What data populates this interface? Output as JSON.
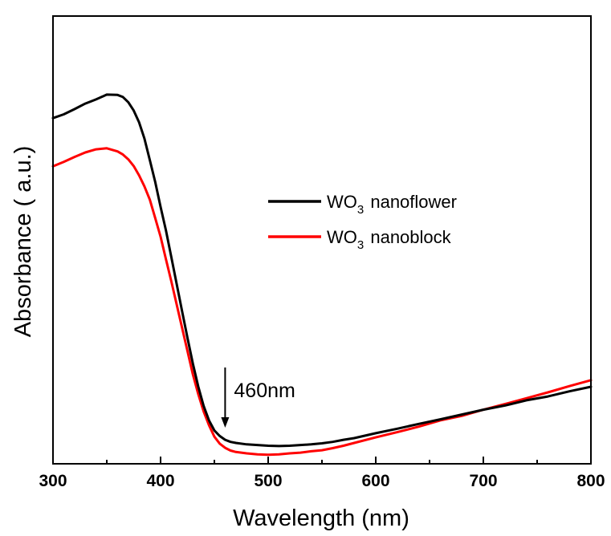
{
  "chart_data": {
    "type": "line",
    "xlabel": "Wavelength (nm)",
    "ylabel": "Absorbance ( a.u.)",
    "xlim": [
      300,
      800
    ],
    "ylim": [
      0,
      100
    ],
    "x_ticks": [
      300,
      400,
      500,
      600,
      700,
      800
    ],
    "x_tick_labels": [
      "300",
      "400",
      "500",
      "600",
      "700",
      "800"
    ],
    "y_ticks_shown": false,
    "legend_position": "center-right",
    "legend": [
      {
        "main": "WO",
        "sub": "3",
        "rest": " nanoflower"
      },
      {
        "main": "WO",
        "sub": "3",
        "rest": " nanoblock"
      }
    ],
    "annotation": {
      "text": "460nm",
      "x": 460
    },
    "series": [
      {
        "color": "#000000",
        "x": [
          300,
          310,
          320,
          330,
          340,
          350,
          360,
          365,
          370,
          375,
          380,
          385,
          390,
          395,
          400,
          405,
          410,
          415,
          420,
          425,
          430,
          435,
          440,
          445,
          450,
          455,
          460,
          465,
          470,
          480,
          490,
          500,
          510,
          520,
          530,
          540,
          550,
          560,
          570,
          580,
          600,
          620,
          640,
          660,
          680,
          700,
          720,
          740,
          760,
          780,
          800
        ],
        "y": [
          93.0,
          94.1,
          95.6,
          97.2,
          98.4,
          99.8,
          99.7,
          99.1,
          97.6,
          95.2,
          91.8,
          87.1,
          80.9,
          74.6,
          67.4,
          60.6,
          52.9,
          45.1,
          37.3,
          29.6,
          22.2,
          15.6,
          10.0,
          5.8,
          2.9,
          1.3,
          0.2,
          -0.4,
          -0.7,
          -1.1,
          -1.3,
          -1.5,
          -1.6,
          -1.5,
          -1.3,
          -1.1,
          -0.8,
          -0.4,
          0.2,
          0.7,
          2.1,
          3.4,
          4.8,
          6.1,
          7.5,
          8.9,
          10.1,
          11.6,
          12.7,
          14.2,
          15.5
        ]
      },
      {
        "color": "#ff0000",
        "x": [
          300,
          310,
          320,
          330,
          340,
          350,
          360,
          365,
          370,
          375,
          380,
          385,
          390,
          395,
          400,
          405,
          410,
          415,
          420,
          425,
          430,
          435,
          440,
          445,
          450,
          455,
          460,
          465,
          470,
          480,
          490,
          500,
          510,
          520,
          530,
          540,
          550,
          560,
          570,
          580,
          600,
          620,
          640,
          660,
          680,
          700,
          720,
          740,
          760,
          780,
          800
        ],
        "y": [
          79.1,
          80.4,
          81.8,
          83.1,
          84.0,
          84.3,
          83.4,
          82.5,
          81.1,
          79.2,
          76.5,
          73.3,
          69.5,
          64.2,
          58.8,
          52.3,
          45.9,
          39.2,
          32.5,
          25.8,
          19.1,
          13.4,
          8.4,
          4.4,
          1.1,
          -0.9,
          -2.1,
          -2.9,
          -3.3,
          -3.7,
          -4.0,
          -4.1,
          -4.0,
          -3.7,
          -3.5,
          -3.1,
          -2.8,
          -2.2,
          -1.5,
          -0.7,
          0.9,
          2.4,
          4.0,
          5.8,
          7.1,
          8.9,
          10.5,
          12.2,
          13.9,
          15.7,
          17.4
        ]
      }
    ]
  }
}
